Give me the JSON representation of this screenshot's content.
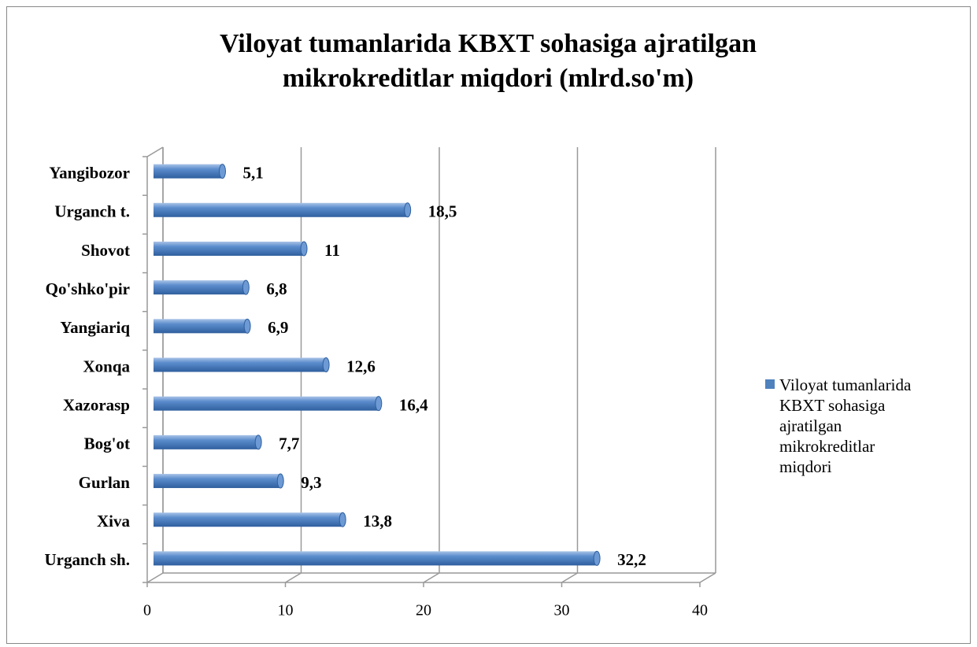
{
  "chart_data": {
    "type": "bar",
    "orientation": "horizontal",
    "title": [
      "Viloyat tumanlarida KBXT sohasiga ajratilgan",
      "mikrokreditlar miqdori (mlrd.so'm)"
    ],
    "categories": [
      "Urganch sh.",
      "Xiva",
      "Gurlan",
      "Bog'ot",
      "Xazorasp",
      "Xonqa",
      "Yangiariq",
      "Qo'shko'pir",
      "Shovot",
      "Urganch t.",
      "Yangibozor"
    ],
    "series": [
      {
        "name": "Viloyat tumanlarida KBXT sohasiga ajratilgan mikrokreditlar miqdori",
        "color": "#4f81bd",
        "values": [
          32.2,
          13.8,
          9.3,
          7.7,
          16.4,
          12.6,
          6.9,
          6.8,
          11,
          18.5,
          5.1
        ],
        "value_labels": [
          "32,2",
          "13,8",
          "9,3",
          "7,7",
          "16,4",
          "12,6",
          "6,9",
          "6,8",
          "11",
          "18,5",
          "5,1"
        ]
      }
    ],
    "xlim": [
      0,
      40
    ],
    "xticks": [
      0,
      10,
      20,
      30,
      40
    ],
    "grid": true,
    "legend": "right"
  }
}
